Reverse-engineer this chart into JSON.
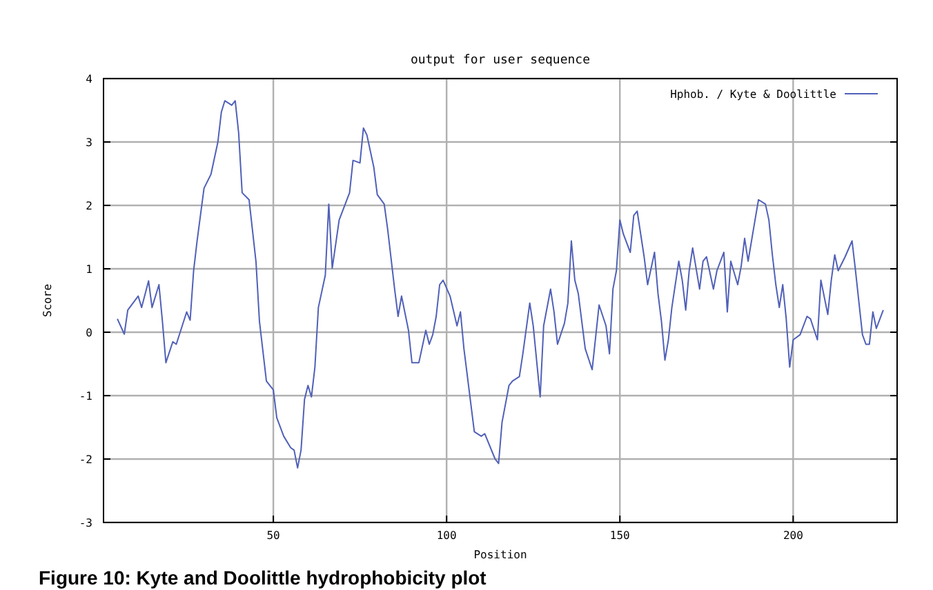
{
  "chart_data": {
    "type": "line",
    "title": "output for user sequence",
    "xlabel": "Position",
    "ylabel": "Score",
    "x": [
      5,
      7,
      8,
      11,
      12,
      14,
      15,
      17,
      18,
      19,
      21,
      22,
      25,
      26,
      27,
      28,
      30,
      32,
      34,
      35,
      36,
      38,
      39,
      40,
      41,
      43,
      45,
      46,
      48,
      50,
      51,
      53,
      55,
      56,
      57,
      58,
      59,
      60,
      61,
      62,
      63,
      65,
      66,
      67,
      69,
      72,
      73,
      75,
      76,
      77,
      79,
      80,
      82,
      83,
      85,
      86,
      87,
      89,
      90,
      92,
      94,
      95,
      96,
      97,
      98,
      99,
      101,
      103,
      104,
      105,
      108,
      110,
      111,
      114,
      115,
      116,
      118,
      119,
      121,
      122,
      124,
      125,
      127,
      128,
      130,
      131,
      132,
      134,
      135,
      136,
      137,
      138,
      140,
      142,
      144,
      146,
      147,
      148,
      149,
      150,
      151,
      153,
      154,
      155,
      157,
      158,
      160,
      161,
      162,
      163,
      164,
      165,
      167,
      168,
      169,
      170,
      171,
      173,
      174,
      175,
      177,
      178,
      180,
      181,
      182,
      184,
      185,
      186,
      187,
      189,
      190,
      192,
      193,
      194,
      195,
      196,
      197,
      198,
      199,
      200,
      202,
      204,
      205,
      207,
      208,
      210,
      211,
      212,
      213,
      215,
      217,
      218,
      219,
      220,
      221,
      222,
      223,
      224,
      226
    ],
    "series": [
      {
        "name": "Hphob. / Kyte & Doolittle",
        "color": "#5060b8",
        "values": [
          0.21,
          -0.03,
          0.35,
          0.57,
          0.39,
          0.81,
          0.39,
          0.75,
          0.17,
          -0.48,
          -0.15,
          -0.19,
          0.32,
          0.19,
          0.97,
          1.44,
          2.27,
          2.49,
          3.0,
          3.47,
          3.65,
          3.58,
          3.65,
          3.14,
          2.2,
          2.09,
          1.11,
          0.17,
          -0.77,
          -0.91,
          -1.35,
          -1.64,
          -1.82,
          -1.86,
          -2.14,
          -1.86,
          -1.06,
          -0.84,
          -1.02,
          -0.55,
          0.39,
          0.9,
          2.02,
          1.01,
          1.77,
          2.2,
          2.71,
          2.67,
          3.22,
          3.11,
          2.6,
          2.17,
          2.02,
          1.62,
          0.68,
          0.25,
          0.57,
          0.03,
          -0.48,
          -0.48,
          0.03,
          -0.19,
          -0.04,
          0.25,
          0.75,
          0.82,
          0.57,
          0.1,
          0.32,
          -0.26,
          -1.57,
          -1.64,
          -1.6,
          -2.0,
          -2.07,
          -1.42,
          -0.84,
          -0.77,
          -0.7,
          -0.34,
          0.46,
          0.1,
          -1.02,
          0.1,
          0.68,
          0.32,
          -0.19,
          0.14,
          0.46,
          1.44,
          0.82,
          0.61,
          -0.26,
          -0.59,
          0.43,
          0.1,
          -0.34,
          0.68,
          0.97,
          1.77,
          1.55,
          1.26,
          1.84,
          1.91,
          1.19,
          0.75,
          1.26,
          0.61,
          0.17,
          -0.44,
          -0.12,
          0.39,
          1.12,
          0.82,
          0.35,
          0.97,
          1.33,
          0.68,
          1.12,
          1.19,
          0.68,
          0.97,
          1.26,
          0.32,
          1.12,
          0.75,
          1.04,
          1.48,
          1.12,
          1.77,
          2.09,
          2.02,
          1.77,
          1.22,
          0.75,
          0.39,
          0.75,
          0.21,
          -0.55,
          -0.12,
          -0.04,
          0.25,
          0.21,
          -0.12,
          0.82,
          0.28,
          0.82,
          1.22,
          0.97,
          1.19,
          1.44,
          0.97,
          0.46,
          -0.04,
          -0.19,
          -0.19,
          0.32,
          0.06,
          0.35
        ]
      }
    ],
    "xlim": [
      1,
      230
    ],
    "xticks": [
      50,
      100,
      150,
      200
    ],
    "ylim": [
      -3,
      4
    ],
    "yticks": [
      -3,
      -2,
      -1,
      0,
      1,
      2,
      3,
      4
    ],
    "grid": true,
    "legend": "top right",
    "marker": "none",
    "line_style": "solid",
    "annotations": [
      "Figure 10: Kyte and Doolittle hydrophobicity plot"
    ]
  }
}
